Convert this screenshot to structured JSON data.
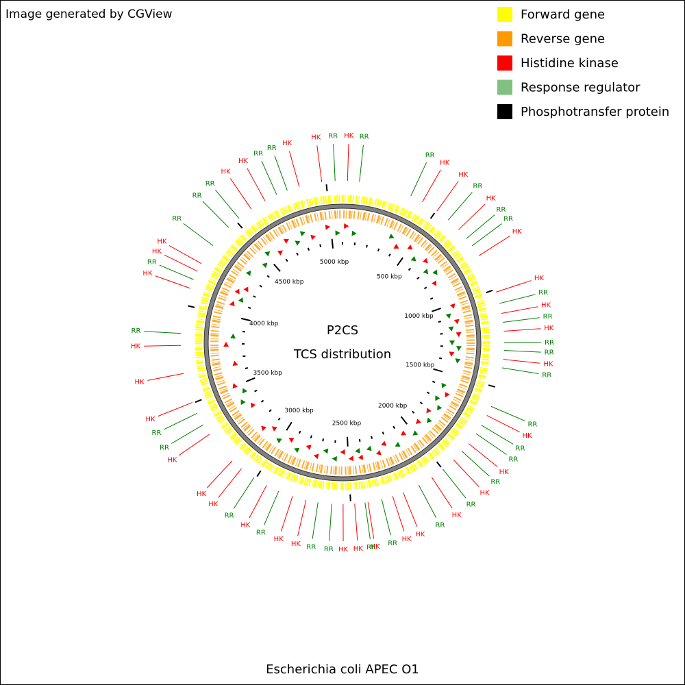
{
  "header": {
    "credit": "Image generated by CGView"
  },
  "legend": [
    {
      "label": "Forward gene",
      "color": "#ffff00"
    },
    {
      "label": "Reverse gene",
      "color": "#ff9900"
    },
    {
      "label": "Histidine kinase",
      "color": "#ff0000"
    },
    {
      "label": "Response regulator",
      "color": "#80c080"
    },
    {
      "label": "Phosphotransfer protein",
      "color": "#000000"
    }
  ],
  "map": {
    "center_title": "P2CS",
    "center_subtitle": "TCS distribution",
    "caption": "Escherichia coli APEC O1",
    "range_kbp": [
      0,
      5082
    ],
    "ticks": [
      {
        "value": 500,
        "label": "500 kbp"
      },
      {
        "value": 1000,
        "label": "1000 kbp"
      },
      {
        "value": 1500,
        "label": "1500 kbp"
      },
      {
        "value": 2000,
        "label": "2000 kbp"
      },
      {
        "value": 2500,
        "label": "2500 kbp"
      },
      {
        "value": 3000,
        "label": "3000 kbp"
      },
      {
        "value": 3500,
        "label": "3500 kbp"
      },
      {
        "value": 4000,
        "label": "4000 kbp"
      },
      {
        "value": 4500,
        "label": "4500 kbp"
      },
      {
        "value": 5000,
        "label": "5000 kbp"
      }
    ],
    "minor_ticks": [
      0,
      100,
      200,
      300,
      400,
      600,
      700,
      800,
      900,
      1100,
      1200,
      1300,
      1400,
      1600,
      1700,
      1800,
      1900,
      2100,
      2200,
      2300,
      2400,
      2600,
      2700,
      2800,
      2900,
      3100,
      3200,
      3300,
      3400,
      3600,
      3700,
      3800,
      3900,
      4100,
      4200,
      4300,
      4400,
      4600,
      4700,
      4800,
      4900,
      5000
    ],
    "features": [
      {
        "label": "HK",
        "kbp": 25,
        "color": "#ff0000"
      },
      {
        "label": "RR",
        "kbp": 85,
        "color": "#008000"
      },
      {
        "label": "RR",
        "kbp": 353,
        "color": "#008000"
      },
      {
        "label": "HK",
        "kbp": 418,
        "color": "#ff0000"
      },
      {
        "label": "HK",
        "kbp": 504,
        "color": "#ff0000"
      },
      {
        "label": "RR",
        "kbp": 576,
        "color": "#008000"
      },
      {
        "label": "HK",
        "kbp": 647,
        "color": "#ff0000"
      },
      {
        "label": "RR",
        "kbp": 706,
        "color": "#008000"
      },
      {
        "label": "RR",
        "kbp": 752,
        "color": "#008000"
      },
      {
        "label": "HK",
        "kbp": 812,
        "color": "#ff0000"
      },
      {
        "label": "HK",
        "kbp": 1014,
        "color": "#ff0000"
      },
      {
        "label": "RR",
        "kbp": 1073,
        "color": "#008000"
      },
      {
        "label": "HK",
        "kbp": 1124,
        "color": "#ff0000"
      },
      {
        "label": "RR",
        "kbp": 1169,
        "color": "#008000"
      },
      {
        "label": "HK",
        "kbp": 1214,
        "color": "#ff0000"
      },
      {
        "label": "RR",
        "kbp": 1271,
        "color": "#008000"
      },
      {
        "label": "RR",
        "kbp": 1310,
        "color": "#008000"
      },
      {
        "label": "HK",
        "kbp": 1355,
        "color": "#ff0000"
      },
      {
        "label": "RR",
        "kbp": 1398,
        "color": "#008000"
      },
      {
        "label": "RR",
        "kbp": 1599,
        "color": "#008000"
      },
      {
        "label": "HK",
        "kbp": 1649,
        "color": "#ff0000"
      },
      {
        "label": "RR",
        "kbp": 1705,
        "color": "#008000"
      },
      {
        "label": "RR",
        "kbp": 1755,
        "color": "#008000"
      },
      {
        "label": "HK",
        "kbp": 1817,
        "color": "#ff0000"
      },
      {
        "label": "RR",
        "kbp": 1868,
        "color": "#008000"
      },
      {
        "label": "HK",
        "kbp": 1928,
        "color": "#ff0000"
      },
      {
        "label": "RR",
        "kbp": 1999,
        "color": "#008000"
      },
      {
        "label": "HK",
        "kbp": 2068,
        "color": "#ff0000"
      },
      {
        "label": "RR",
        "kbp": 2144,
        "color": "#008000"
      },
      {
        "label": "HK",
        "kbp": 2230,
        "color": "#ff0000"
      },
      {
        "label": "HK",
        "kbp": 2286,
        "color": "#ff0000"
      },
      {
        "label": "RR",
        "kbp": 2343,
        "color": "#008000"
      },
      {
        "label": "HK",
        "kbp": 2413,
        "color": "#ff0000"
      },
      {
        "label": "RR",
        "kbp": 2428,
        "color": "#008000"
      },
      {
        "label": "HK",
        "kbp": 2480,
        "color": "#ff0000"
      },
      {
        "label": "HK",
        "kbp": 2538,
        "color": "#ff0000"
      },
      {
        "label": "RR",
        "kbp": 2595,
        "color": "#008000"
      },
      {
        "label": "RR",
        "kbp": 2664,
        "color": "#008000"
      },
      {
        "label": "HK",
        "kbp": 2725,
        "color": "#ff0000"
      },
      {
        "label": "HK",
        "kbp": 2795,
        "color": "#ff0000"
      },
      {
        "label": "RR",
        "kbp": 2869,
        "color": "#008000"
      },
      {
        "label": "HK",
        "kbp": 2936,
        "color": "#ff0000"
      },
      {
        "label": "RR",
        "kbp": 3010,
        "color": "#008000"
      },
      {
        "label": "HK",
        "kbp": 3087,
        "color": "#ff0000"
      },
      {
        "label": "HK",
        "kbp": 3148,
        "color": "#ff0000"
      },
      {
        "label": "HK",
        "kbp": 3323,
        "color": "#ff0000"
      },
      {
        "label": "RR",
        "kbp": 3380,
        "color": "#008000"
      },
      {
        "label": "RR",
        "kbp": 3445,
        "color": "#008000"
      },
      {
        "label": "HK",
        "kbp": 3504,
        "color": "#ff0000"
      },
      {
        "label": "HK",
        "kbp": 3656,
        "color": "#ff0000"
      },
      {
        "label": "HK",
        "kbp": 3797,
        "color": "#ff0000"
      },
      {
        "label": "RR",
        "kbp": 3857,
        "color": "#008000"
      },
      {
        "label": "HK",
        "kbp": 4088,
        "color": "#ff0000"
      },
      {
        "label": "RR",
        "kbp": 4135,
        "color": "#008000"
      },
      {
        "label": "HK",
        "kbp": 4181,
        "color": "#ff0000"
      },
      {
        "label": "HK",
        "kbp": 4224,
        "color": "#ff0000"
      },
      {
        "label": "RR",
        "kbp": 4331,
        "color": "#008000"
      },
      {
        "label": "RR",
        "kbp": 4451,
        "color": "#008000"
      },
      {
        "label": "RR",
        "kbp": 4520,
        "color": "#008000"
      },
      {
        "label": "HK",
        "kbp": 4597,
        "color": "#ff0000"
      },
      {
        "label": "HK",
        "kbp": 4677,
        "color": "#ff0000"
      },
      {
        "label": "RR",
        "kbp": 4743,
        "color": "#008000"
      },
      {
        "label": "RR",
        "kbp": 4800,
        "color": "#008000"
      },
      {
        "label": "HK",
        "kbp": 4863,
        "color": "#ff0000"
      },
      {
        "label": "HK",
        "kbp": 4978,
        "color": "#ff0000"
      },
      {
        "label": "RR",
        "kbp": 5045,
        "color": "#008000"
      }
    ]
  }
}
